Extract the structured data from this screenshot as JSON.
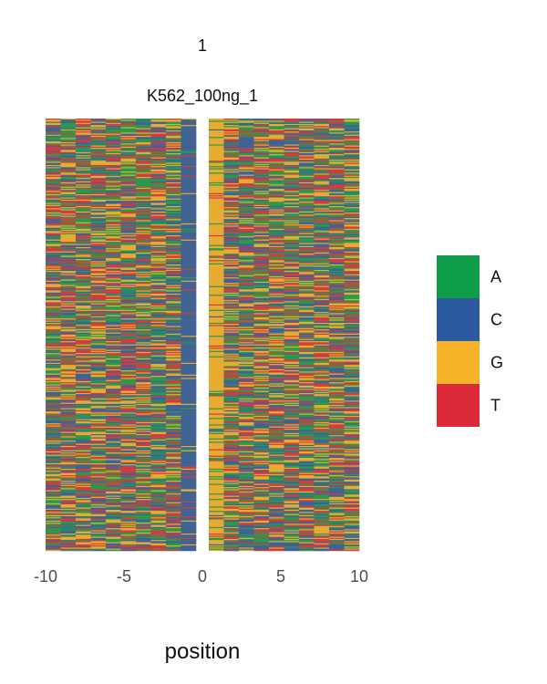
{
  "chart_data": {
    "type": "heatmap",
    "facet_label": "1",
    "title": "K562_100ng_1",
    "xlabel": "position",
    "ylabel": "",
    "x_range": [
      -10,
      10
    ],
    "x_ticks": [
      {
        "value": -10,
        "label": "-10"
      },
      {
        "value": -5,
        "label": "-5"
      },
      {
        "value": 0,
        "label": "0"
      },
      {
        "value": 5,
        "label": "5"
      },
      {
        "value": 10,
        "label": "10"
      }
    ],
    "left_panel_positions": [
      -10,
      -1
    ],
    "right_panel_positions": [
      1,
      10
    ],
    "row_count": 400,
    "grid": false,
    "legend_position": "right",
    "legend": [
      {
        "label": "A",
        "color": "#0f9d4a"
      },
      {
        "label": "C",
        "color": "#2b5aa1"
      },
      {
        "label": "G",
        "color": "#f7b22a"
      },
      {
        "label": "T",
        "color": "#dd2a3b"
      }
    ],
    "position_bias": {
      "-1": {
        "A": 0.02,
        "C": 0.9,
        "G": 0.04,
        "T": 0.04
      },
      "1": {
        "A": 0.12,
        "C": 0.04,
        "G": 0.8,
        "T": 0.04
      }
    }
  }
}
